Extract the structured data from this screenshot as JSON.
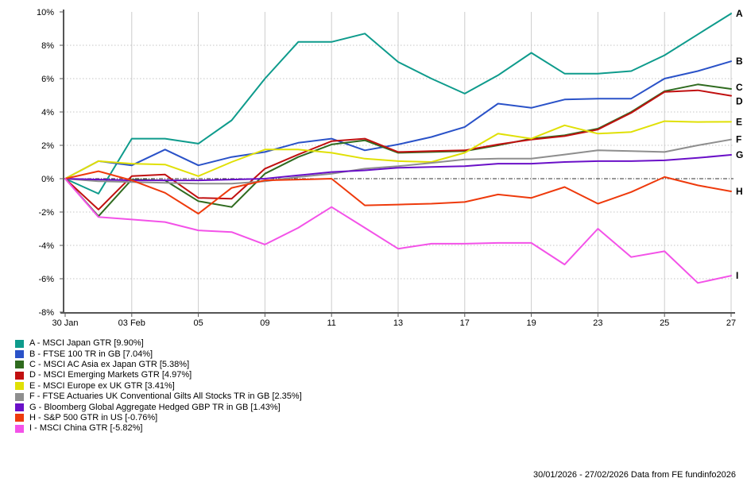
{
  "chart_data": {
    "type": "line",
    "title": "",
    "xlabel": "",
    "ylabel": "",
    "x_count": 21,
    "x": [
      "30 Jan",
      "02 Feb",
      "03 Feb",
      "04 Feb",
      "05 Feb",
      "06 Feb",
      "09 Feb",
      "10 Feb",
      "11 Feb",
      "12 Feb",
      "13 Feb",
      "16 Feb",
      "17 Feb",
      "18 Feb",
      "19 Feb",
      "20 Feb",
      "23 Feb",
      "24 Feb",
      "25 Feb",
      "26 Feb",
      "27 Feb"
    ],
    "x_ticks": [
      {
        "index": 0,
        "label": "30 Jan"
      },
      {
        "index": 2,
        "label": "03 Feb"
      },
      {
        "index": 4,
        "label": "05"
      },
      {
        "index": 6,
        "label": "09"
      },
      {
        "index": 8,
        "label": "11"
      },
      {
        "index": 10,
        "label": "13"
      },
      {
        "index": 12,
        "label": "17"
      },
      {
        "index": 14,
        "label": "19"
      },
      {
        "index": 16,
        "label": "23"
      },
      {
        "index": 18,
        "label": "25"
      },
      {
        "index": 20,
        "label": "27"
      }
    ],
    "ylim": [
      -8,
      10
    ],
    "y_ticks": [
      {
        "value": 10,
        "label": "10%"
      },
      {
        "value": 8,
        "label": "8%"
      },
      {
        "value": 6,
        "label": "6%"
      },
      {
        "value": 4,
        "label": "4%"
      },
      {
        "value": 2,
        "label": "2%"
      },
      {
        "value": 0,
        "label": "0%"
      },
      {
        "value": -2,
        "label": "-2%"
      },
      {
        "value": -4,
        "label": "-4%"
      },
      {
        "value": -6,
        "label": "-6%"
      },
      {
        "value": -8,
        "label": "-8%"
      }
    ],
    "grid": {
      "horizontal": "dotted light gray, zero line dark dotted",
      "vertical": "solid light gray at labeled ticks"
    },
    "legend_position": "bottom-left",
    "series": [
      {
        "letter": "A",
        "name": "MSCI Japan GTR",
        "final_return": "9.90%",
        "color": "#0e9b8c",
        "label_dy": 0,
        "values": [
          0,
          -0.9,
          2.4,
          2.4,
          2.1,
          3.5,
          6.0,
          8.2,
          8.2,
          8.7,
          7.0,
          6.0,
          5.1,
          6.2,
          7.55,
          6.3,
          6.3,
          6.45,
          7.4,
          8.65,
          9.9
        ]
      },
      {
        "letter": "B",
        "name": "FTSE 100 TR in GB",
        "final_return": "7.04%",
        "color": "#2a52c8",
        "label_dy": 0,
        "values": [
          0,
          1.05,
          0.8,
          1.75,
          0.8,
          1.3,
          1.6,
          2.15,
          2.4,
          1.7,
          2.05,
          2.5,
          3.1,
          4.5,
          4.25,
          4.75,
          4.8,
          4.8,
          6.0,
          6.45,
          7.04
        ]
      },
      {
        "letter": "C",
        "name": "MSCI AC Asia ex Japan GTR",
        "final_return": "5.38%",
        "color": "#2f6b1f",
        "label_dy": -2,
        "values": [
          0,
          -2.25,
          -0.05,
          -0.1,
          -1.35,
          -1.7,
          0.3,
          1.3,
          2.05,
          2.3,
          1.55,
          1.6,
          1.65,
          2.0,
          2.4,
          2.6,
          3.0,
          4.0,
          5.25,
          5.65,
          5.38
        ]
      },
      {
        "letter": "D",
        "name": "MSCI Emerging Markets GTR",
        "final_return": "4.97%",
        "color": "#c11010",
        "label_dy": 7,
        "values": [
          0,
          -1.85,
          0.15,
          0.25,
          -1.15,
          -1.2,
          0.6,
          1.45,
          2.25,
          2.4,
          1.6,
          1.65,
          1.7,
          2.05,
          2.35,
          2.55,
          2.95,
          3.95,
          5.2,
          5.3,
          4.97
        ]
      },
      {
        "letter": "E",
        "name": "MSCI Europe ex UK GTR",
        "final_return": "3.41%",
        "color": "#e0e005",
        "label_dy": 0,
        "values": [
          0,
          1.05,
          0.9,
          0.85,
          0.15,
          1.0,
          1.75,
          1.75,
          1.55,
          1.2,
          1.05,
          1.0,
          1.55,
          2.7,
          2.4,
          3.2,
          2.7,
          2.8,
          3.45,
          3.4,
          3.41
        ]
      },
      {
        "letter": "F",
        "name": "FTSE Actuaries UK Conventional Gilts All Stocks TR in GB",
        "final_return": "2.35%",
        "color": "#8e8e8e",
        "label_dy": 0,
        "values": [
          0,
          -0.15,
          -0.2,
          -0.25,
          -0.3,
          -0.3,
          -0.15,
          0.1,
          0.3,
          0.6,
          0.75,
          0.95,
          1.15,
          1.2,
          1.2,
          1.45,
          1.7,
          1.65,
          1.6,
          2.0,
          2.35
        ]
      },
      {
        "letter": "G",
        "name": "Bloomberg Global Aggregate Hedged GBP TR in GB",
        "final_return": "1.43%",
        "color": "#6a10c8",
        "label_dy": 0,
        "values": [
          0,
          -0.05,
          -0.1,
          -0.1,
          -0.1,
          -0.05,
          0.0,
          0.2,
          0.4,
          0.5,
          0.65,
          0.7,
          0.75,
          0.9,
          0.9,
          1.0,
          1.05,
          1.05,
          1.1,
          1.25,
          1.43
        ]
      },
      {
        "letter": "H",
        "name": "S&P 500 GTR in US",
        "final_return": "-0.76%",
        "color": "#ee3a0c",
        "label_dy": 0,
        "values": [
          0,
          0.45,
          -0.1,
          -0.85,
          -2.1,
          -0.55,
          -0.1,
          -0.05,
          0.0,
          -1.6,
          -1.55,
          -1.5,
          -1.4,
          -0.95,
          -1.15,
          -0.5,
          -1.5,
          -0.8,
          0.1,
          -0.4,
          -0.76
        ]
      },
      {
        "letter": "I",
        "name": "MSCI China GTR",
        "final_return": "-5.82%",
        "color": "#f352e8",
        "label_dy": 0,
        "values": [
          0,
          -2.3,
          -2.45,
          -2.6,
          -3.1,
          -3.2,
          -3.95,
          -2.95,
          -1.7,
          -2.95,
          -4.2,
          -3.9,
          -3.9,
          -3.85,
          -3.85,
          -5.15,
          -3.0,
          -4.7,
          -4.35,
          -6.25,
          -5.82
        ]
      }
    ]
  },
  "legend": {
    "items": [
      {
        "label": "A - MSCI Japan GTR [9.90%]"
      },
      {
        "label": "B - FTSE 100 TR in GB [7.04%]"
      },
      {
        "label": "C - MSCI AC Asia ex Japan GTR [5.38%]"
      },
      {
        "label": "D - MSCI Emerging Markets GTR [4.97%]"
      },
      {
        "label": "E - MSCI Europe ex UK GTR [3.41%]"
      },
      {
        "label": "F - FTSE Actuaries UK Conventional Gilts All Stocks TR in GB [2.35%]"
      },
      {
        "label": "G - Bloomberg Global Aggregate Hedged GBP TR in GB [1.43%]"
      },
      {
        "label": "H - S&P 500 GTR in US [-0.76%]"
      },
      {
        "label": "I - MSCI China GTR [-5.82%]"
      }
    ]
  },
  "footer": {
    "text": "30/01/2026 - 27/02/2026 Data from FE fundinfo2026"
  }
}
